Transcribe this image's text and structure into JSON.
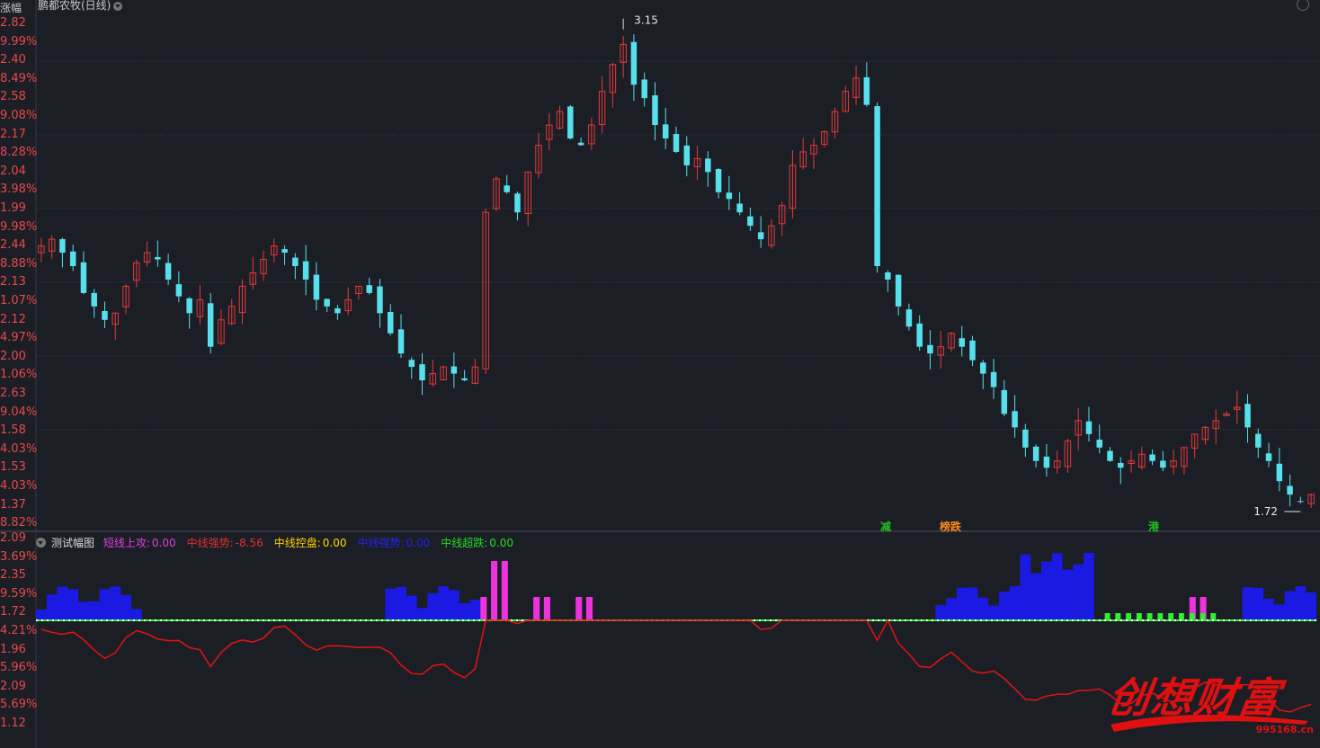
{
  "header": {
    "axis_head": "涨幅",
    "stock_name": "鹏都农牧(日线)"
  },
  "main_axis_labels": [
    "2.82",
    "9.99%",
    "2.40",
    "8.49%",
    "2.58",
    "9.08%",
    "2.17",
    "8.28%",
    "2.04",
    "3.98%",
    "1.99",
    "9.98%",
    "2.44",
    "8.88%",
    "2.13",
    "1.07%",
    "2.12",
    "4.97%",
    "2.00",
    "1.06%",
    "2.63",
    "9.04%",
    "1.58",
    "4.03%",
    "1.53",
    "4.03%",
    "1.37",
    "8.82%"
  ],
  "sub_axis_labels": [
    "2.09",
    "3.69%",
    "2.35",
    "9.59%",
    "1.72",
    "4.21%",
    "1.96",
    "5.96%",
    "2.09",
    "5.69%",
    "1.12"
  ],
  "price_annotations": {
    "high_label": "3.15",
    "low_label": "1.72"
  },
  "markers": [
    {
      "text": "减",
      "color": "#1ec21e"
    },
    {
      "text": "榜跌",
      "color": "#ff8a1a"
    },
    {
      "text": "港",
      "color": "#1ec21e"
    }
  ],
  "indicator": {
    "name": "测试幅图",
    "items": [
      {
        "label": "短线上攻:",
        "value": "0.00",
        "color": "#e040e0"
      },
      {
        "label": "中线强势:",
        "value": "-8.56",
        "color": "#e03030"
      },
      {
        "label": "中线控盘:",
        "value": "0.00",
        "color": "#ffd400"
      },
      {
        "label": "中线强势:",
        "value": "0.00",
        "color": "#2222ee"
      },
      {
        "label": "中线超跌:",
        "value": "0.00",
        "color": "#22dd22"
      }
    ]
  },
  "watermark": {
    "text": "创想财富",
    "url": "995168.cn"
  },
  "colors": {
    "up": "#e33a3a",
    "down": "#56e0ec",
    "blue_bar": "#1a1aee",
    "magenta_bar": "#ee33dd",
    "green_line": "#33ee33",
    "red_line": "#e31212",
    "grid": "#3a3d4a"
  },
  "chart_data": {
    "type": "candlestick",
    "price_high": 3.15,
    "price_low": 1.72,
    "close": [
      2.5,
      2.52,
      2.48,
      2.44,
      2.36,
      2.32,
      2.28,
      2.3,
      2.38,
      2.45,
      2.48,
      2.46,
      2.4,
      2.35,
      2.3,
      2.34,
      2.2,
      2.28,
      2.32,
      2.38,
      2.42,
      2.46,
      2.5,
      2.48,
      2.44,
      2.4,
      2.34,
      2.32,
      2.3,
      2.34,
      2.38,
      2.36,
      2.3,
      2.24,
      2.18,
      2.14,
      2.1,
      2.12,
      2.14,
      2.12,
      2.1,
      2.14,
      2.6,
      2.7,
      2.66,
      2.6,
      2.72,
      2.8,
      2.86,
      2.9,
      2.82,
      2.8,
      2.86,
      2.96,
      3.04,
      3.1,
      2.98,
      2.94,
      2.86,
      2.82,
      2.78,
      2.74,
      2.76,
      2.72,
      2.66,
      2.64,
      2.6,
      2.56,
      2.52,
      2.56,
      2.62,
      2.74,
      2.78,
      2.8,
      2.84,
      2.9,
      2.96,
      3.0,
      2.92,
      2.44,
      2.4,
      2.32,
      2.26,
      2.2,
      2.18,
      2.2,
      2.24,
      2.2,
      2.16,
      2.12,
      2.08,
      2.0,
      1.96,
      1.9,
      1.86,
      1.84,
      1.86,
      1.92,
      1.98,
      1.94,
      1.9,
      1.86,
      1.84,
      1.86,
      1.88,
      1.86,
      1.84,
      1.86,
      1.9,
      1.94,
      1.96,
      1.98,
      2.0,
      2.02,
      1.96,
      1.9,
      1.86,
      1.8,
      1.76,
      1.74,
      1.76
    ]
  }
}
